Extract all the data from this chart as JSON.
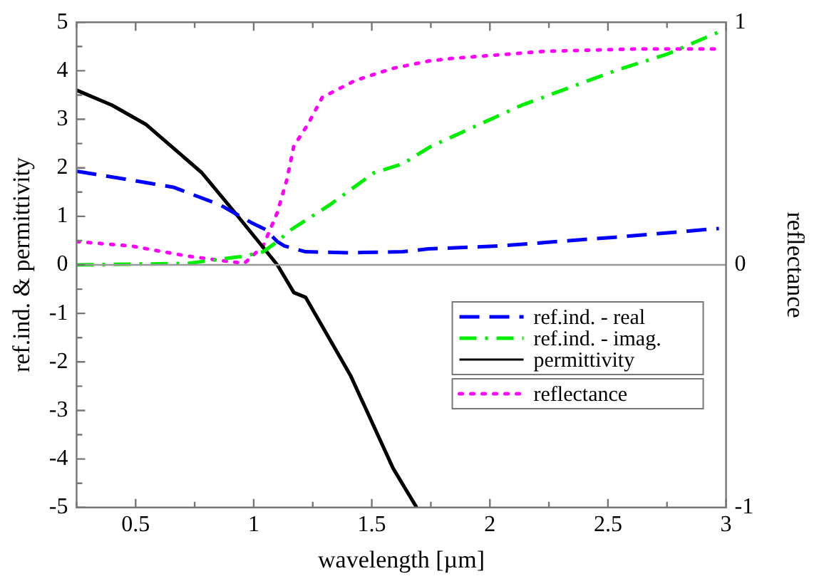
{
  "chart_data": {
    "type": "line",
    "xlabel": "wavelength [µm]",
    "ylabel": "ref.ind. & permittivity",
    "y2label": "reflectance",
    "xlim": [
      0.25,
      3
    ],
    "xticks": [
      {
        "value": 0.25,
        "label": null
      },
      0.5,
      {
        "value": 0.75,
        "label": null
      },
      1,
      {
        "value": 1.25,
        "label": null
      },
      1.5,
      {
        "value": 1.75,
        "label": null
      },
      2,
      {
        "value": 2.25,
        "label": null
      },
      2.5,
      {
        "value": 2.75,
        "label": null
      },
      3
    ],
    "ylim": [
      -5,
      5
    ],
    "yticks": [
      -5,
      {
        "value": -4.5,
        "label": null
      },
      -4,
      {
        "value": -3.5,
        "label": null
      },
      -3,
      {
        "value": -2.5,
        "label": null
      },
      -2,
      {
        "value": -1.5,
        "label": null
      },
      -1,
      {
        "value": -0.5,
        "label": null
      },
      0,
      {
        "value": 0.5,
        "label": null
      },
      1,
      {
        "value": 1.5,
        "label": null
      },
      2,
      {
        "value": 2.5,
        "label": null
      },
      3,
      {
        "value": 3.5,
        "label": null
      },
      4,
      {
        "value": 4.5,
        "label": null
      },
      5
    ],
    "y2lim": [
      -1,
      1
    ],
    "y2ticks": [
      -1,
      0,
      1
    ],
    "grid": false,
    "legend": "center right",
    "marker": "none",
    "ref_lines": [
      {
        "axis": "y",
        "value": 0,
        "color": "#999999"
      }
    ],
    "series": [
      {
        "name": "ref.ind. - real",
        "color": "#0000ff",
        "line_style": "dashed",
        "x": [
          0.25,
          0.44,
          0.66,
          0.86,
          0.99,
          1.05,
          1.1,
          1.13,
          1.22,
          1.4,
          1.63,
          1.74,
          2.04,
          2.53,
          2.97
        ],
        "values": [
          1.93,
          1.78,
          1.6,
          1.23,
          0.87,
          0.73,
          0.48,
          0.39,
          0.27,
          0.25,
          0.27,
          0.33,
          0.39,
          0.57,
          0.75
        ]
      },
      {
        "name": "ref.ind. - imag.",
        "color": "#00ee00",
        "line_style": "dashdot",
        "x": [
          0.25,
          0.72,
          0.96,
          1.04,
          1.1,
          1.16,
          1.32,
          1.51,
          1.63,
          1.75,
          2.13,
          2.53,
          2.75,
          2.97
        ],
        "values": [
          0,
          0.03,
          0.18,
          0.27,
          0.48,
          0.73,
          1.23,
          1.9,
          2.08,
          2.44,
          3.28,
          4.0,
          4.34,
          4.8
        ]
      },
      {
        "name": "permittivity",
        "color": "#000000",
        "line_style": "solid",
        "x": [
          0.25,
          0.4,
          0.545,
          0.78,
          0.93,
          1.1,
          1.17,
          1.22,
          1.41,
          1.59,
          1.69
        ],
        "values": [
          3.6,
          3.29,
          2.89,
          1.9,
          1.02,
          0.0,
          -0.57,
          -0.67,
          -2.28,
          -4.19,
          -5.0
        ]
      },
      {
        "name": "reflectance",
        "color": "#ff00ff",
        "line_style": "dotted",
        "axis": "y2",
        "x": [
          0.25,
          0.48,
          0.72,
          0.96,
          1.04,
          1.1,
          1.14,
          1.17,
          1.23,
          1.29,
          1.43,
          1.59,
          1.74,
          1.83,
          2.23,
          2.63,
          2.97
        ],
        "values": [
          0.096,
          0.078,
          0.036,
          0.006,
          0.078,
          0.216,
          0.35,
          0.49,
          0.58,
          0.69,
          0.76,
          0.81,
          0.84,
          0.85,
          0.88,
          0.89,
          0.89
        ]
      }
    ]
  }
}
